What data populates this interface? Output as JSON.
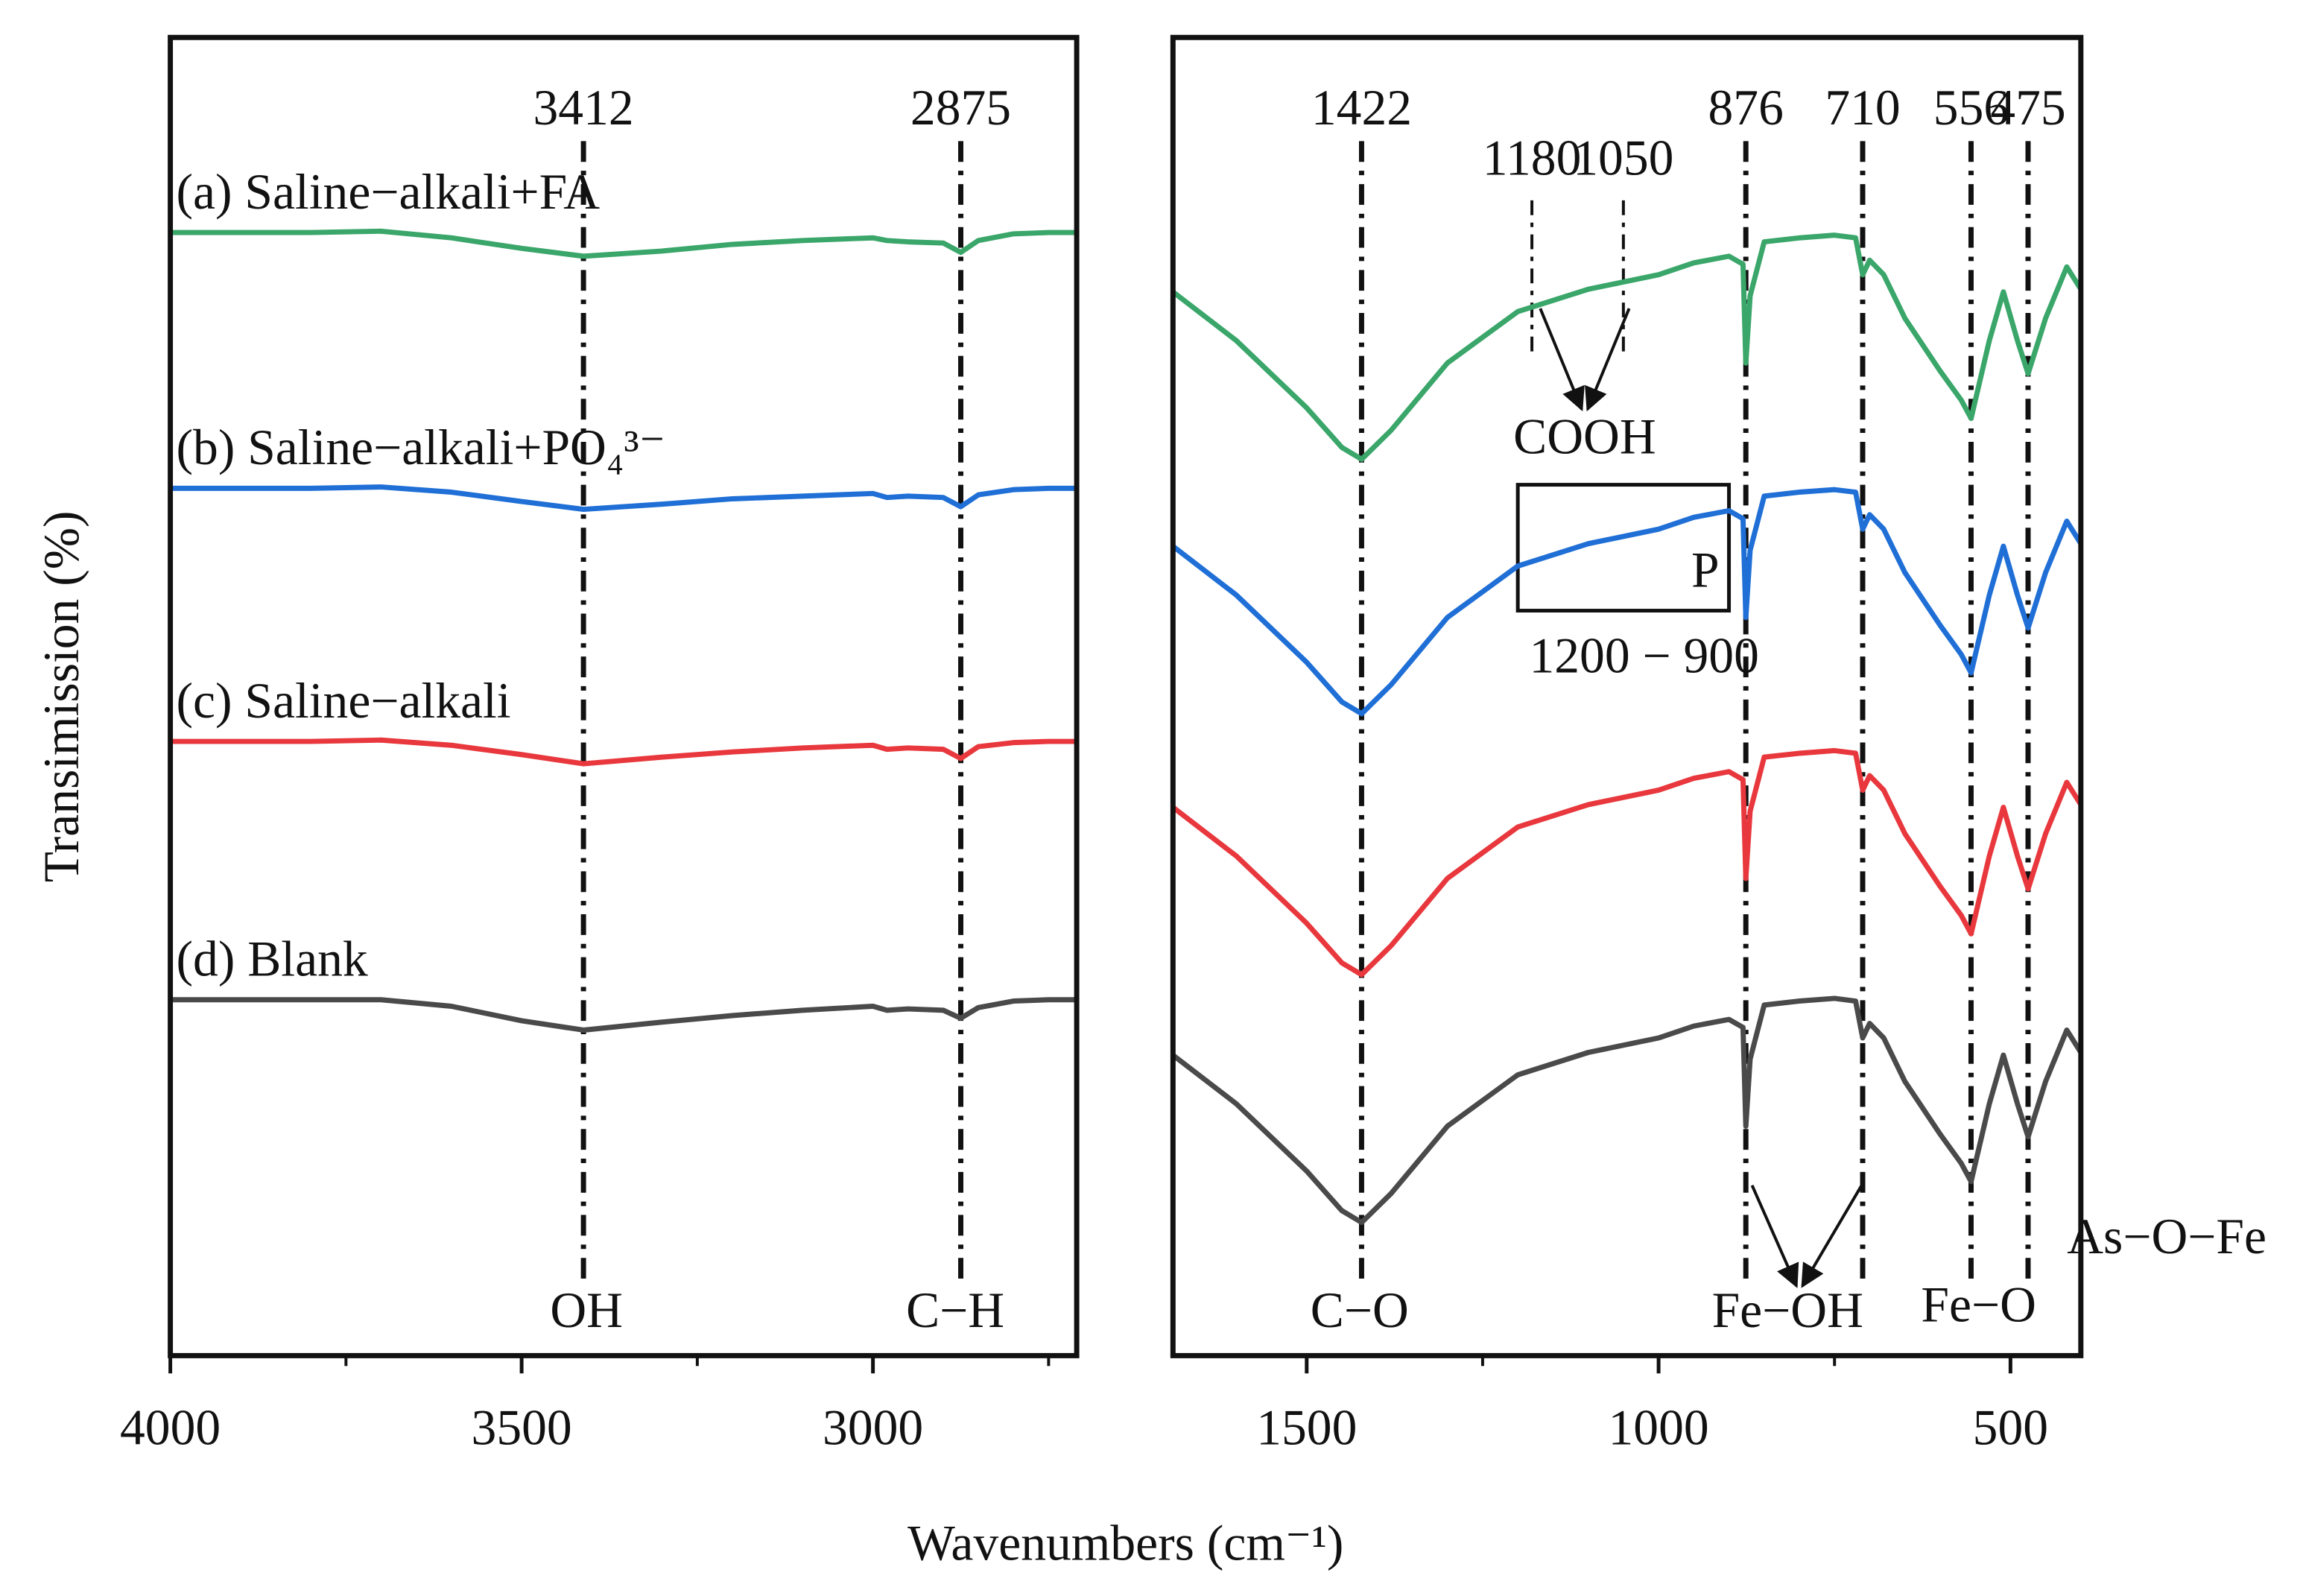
{
  "figure": {
    "xlabel": "Wavenumbers (cm⁻¹)",
    "ylabel": "Transimission (%)"
  },
  "chart_data": [
    {
      "type": "line",
      "xlim": [
        4000,
        2710
      ],
      "ylim": [
        0,
        100
      ],
      "xticks": [
        4000,
        3500,
        3000
      ],
      "xminor": [
        3750,
        3250,
        2750
      ],
      "peaks": [
        3412,
        2875
      ],
      "annotations": [
        "OH",
        "C−H"
      ],
      "x": [
        4000,
        3900,
        3800,
        3700,
        3600,
        3500,
        3412,
        3300,
        3200,
        3100,
        3000,
        2980,
        2950,
        2900,
        2875,
        2850,
        2800,
        2750,
        2710
      ],
      "series": [
        {
          "name": "(a) Saline−alkali+FA",
          "color": "#3aa66a",
          "values": [
            85.2,
            85.2,
            85.2,
            85.3,
            84.8,
            84.0,
            83.4,
            83.8,
            84.3,
            84.6,
            84.8,
            84.6,
            84.5,
            84.4,
            83.7,
            84.6,
            85.1,
            85.2,
            85.2
          ]
        },
        {
          "name": "(b) Saline−alkali+PO₄³⁻",
          "color": "#1f6fd6",
          "values": [
            65.8,
            65.8,
            65.8,
            65.9,
            65.5,
            64.8,
            64.2,
            64.6,
            65.0,
            65.2,
            65.4,
            65.1,
            65.2,
            65.1,
            64.4,
            65.3,
            65.7,
            65.8,
            65.8
          ]
        },
        {
          "name": "(c) Saline−alkali",
          "color": "#e8383d",
          "values": [
            46.6,
            46.6,
            46.6,
            46.7,
            46.3,
            45.6,
            44.9,
            45.4,
            45.8,
            46.1,
            46.3,
            46.0,
            46.1,
            46.0,
            45.3,
            46.2,
            46.5,
            46.6,
            46.6
          ]
        },
        {
          "name": "(d) Blank",
          "color": "#4a4a4a",
          "values": [
            27.0,
            27.0,
            27.0,
            27.0,
            26.5,
            25.4,
            24.7,
            25.3,
            25.8,
            26.2,
            26.5,
            26.2,
            26.3,
            26.2,
            25.6,
            26.4,
            26.9,
            27.0,
            27.0
          ]
        }
      ]
    },
    {
      "type": "line",
      "xlim": [
        1690,
        400
      ],
      "ylim": [
        0,
        100
      ],
      "xticks": [
        1500,
        1000,
        500
      ],
      "xminor": [
        1250,
        750
      ],
      "peaks": [
        1422,
        876,
        710,
        556,
        475
      ],
      "minor_peaks": [
        1180,
        1050
      ],
      "region": {
        "range": [
          1200,
          900
        ],
        "tag": "P",
        "label": "1200 − 900"
      },
      "annotations": [
        "COOH",
        "C−O",
        "Fe−OH",
        "Fe−O",
        "As−O−Fe"
      ],
      "x": [
        1690,
        1600,
        1500,
        1450,
        1422,
        1380,
        1300,
        1200,
        1100,
        1000,
        950,
        900,
        880,
        876,
        870,
        850,
        800,
        750,
        720,
        710,
        700,
        680,
        650,
        600,
        570,
        556,
        530,
        510,
        490,
        475,
        450,
        420,
        400
      ],
      "series": [
        {
          "color": "#3aa66a",
          "values": [
            80.7,
            77.0,
            71.9,
            68.9,
            68.0,
            70.2,
            75.3,
            79.2,
            80.9,
            82.0,
            82.9,
            83.4,
            82.8,
            75.3,
            80.4,
            84.5,
            84.8,
            85.0,
            84.8,
            82.0,
            83.1,
            82.0,
            78.7,
            74.7,
            72.5,
            71.1,
            77.0,
            80.7,
            77.0,
            74.5,
            78.7,
            82.6,
            80.9
          ]
        },
        {
          "color": "#1f6fd6",
          "values": [
            61.4,
            57.7,
            52.6,
            49.6,
            48.7,
            50.9,
            56.0,
            59.9,
            61.6,
            62.7,
            63.6,
            64.1,
            63.5,
            56.0,
            61.1,
            65.2,
            65.5,
            65.7,
            65.5,
            62.7,
            63.8,
            62.7,
            59.4,
            55.4,
            53.2,
            51.8,
            57.7,
            61.4,
            57.7,
            55.2,
            59.4,
            63.3,
            61.6
          ]
        },
        {
          "color": "#e8383d",
          "values": [
            41.6,
            37.9,
            32.8,
            29.8,
            28.9,
            31.1,
            36.2,
            40.1,
            41.8,
            42.9,
            43.8,
            44.3,
            43.7,
            36.2,
            41.3,
            45.4,
            45.7,
            45.9,
            45.7,
            42.9,
            44.0,
            42.9,
            39.6,
            35.6,
            33.4,
            32.0,
            37.9,
            41.6,
            37.9,
            35.4,
            39.6,
            43.5,
            41.8
          ]
        },
        {
          "color": "#4a4a4a",
          "values": [
            22.8,
            19.1,
            14.0,
            11.0,
            10.1,
            12.3,
            17.4,
            21.3,
            23.0,
            24.1,
            25.0,
            25.5,
            24.9,
            17.4,
            22.5,
            26.6,
            26.9,
            27.1,
            26.9,
            24.1,
            25.2,
            24.1,
            20.8,
            16.8,
            14.6,
            13.2,
            19.1,
            22.8,
            19.1,
            16.6,
            20.8,
            24.7,
            23.0
          ]
        }
      ]
    }
  ]
}
